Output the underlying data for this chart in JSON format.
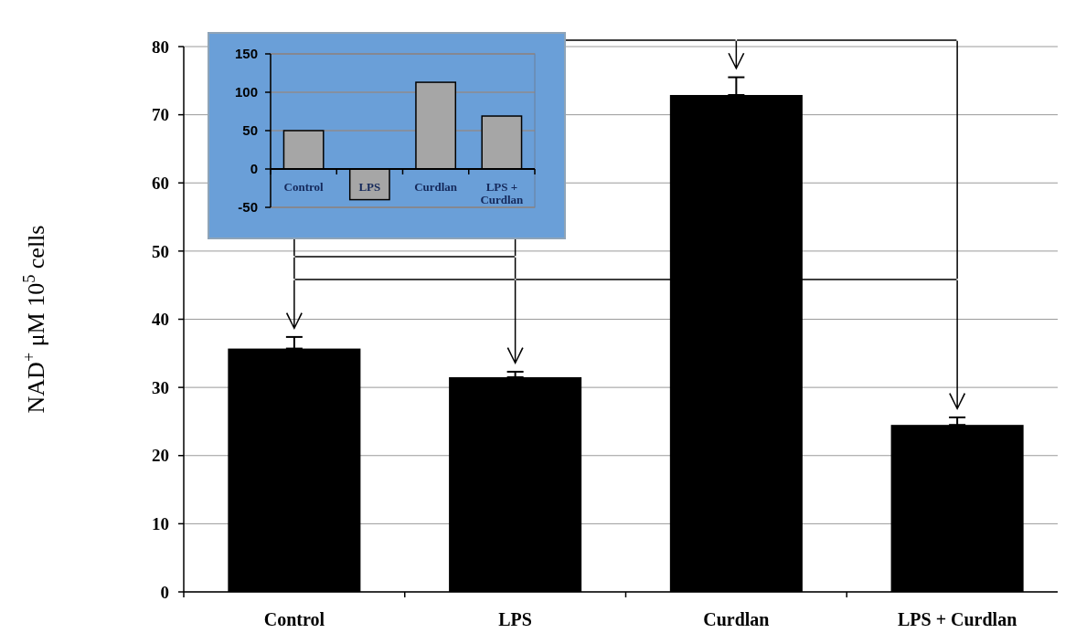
{
  "chart_data": [
    {
      "type": "bar",
      "ylabel": "NAD$^{+}$ μM 10$^{5}$ cells",
      "categories": [
        "Control",
        "LPS",
        "Curdlan",
        "LPS + Curdlan"
      ],
      "values": [
        35.7,
        31.5,
        72.9,
        24.5
      ],
      "errors": [
        [
          35.7,
          37.4
        ],
        [
          31.5,
          32.3
        ],
        [
          72.9,
          75.5
        ],
        [
          24.5,
          25.6
        ]
      ],
      "color": "#000000",
      "ylim": [
        0,
        80
      ],
      "yticks": [
        0,
        10,
        20,
        30,
        40,
        50,
        60,
        70,
        80
      ],
      "grid": "y"
    },
    {
      "type": "bar",
      "categories": [
        "Control",
        "LPS",
        "Curdlan",
        "LPS + Curdlan"
      ],
      "values": [
        50,
        -40,
        113,
        69
      ],
      "color": "#a6a6a6",
      "ylim": [
        -50,
        150
      ],
      "yticks": [
        -50,
        0,
        50,
        100,
        150
      ],
      "grid": "y"
    }
  ]
}
